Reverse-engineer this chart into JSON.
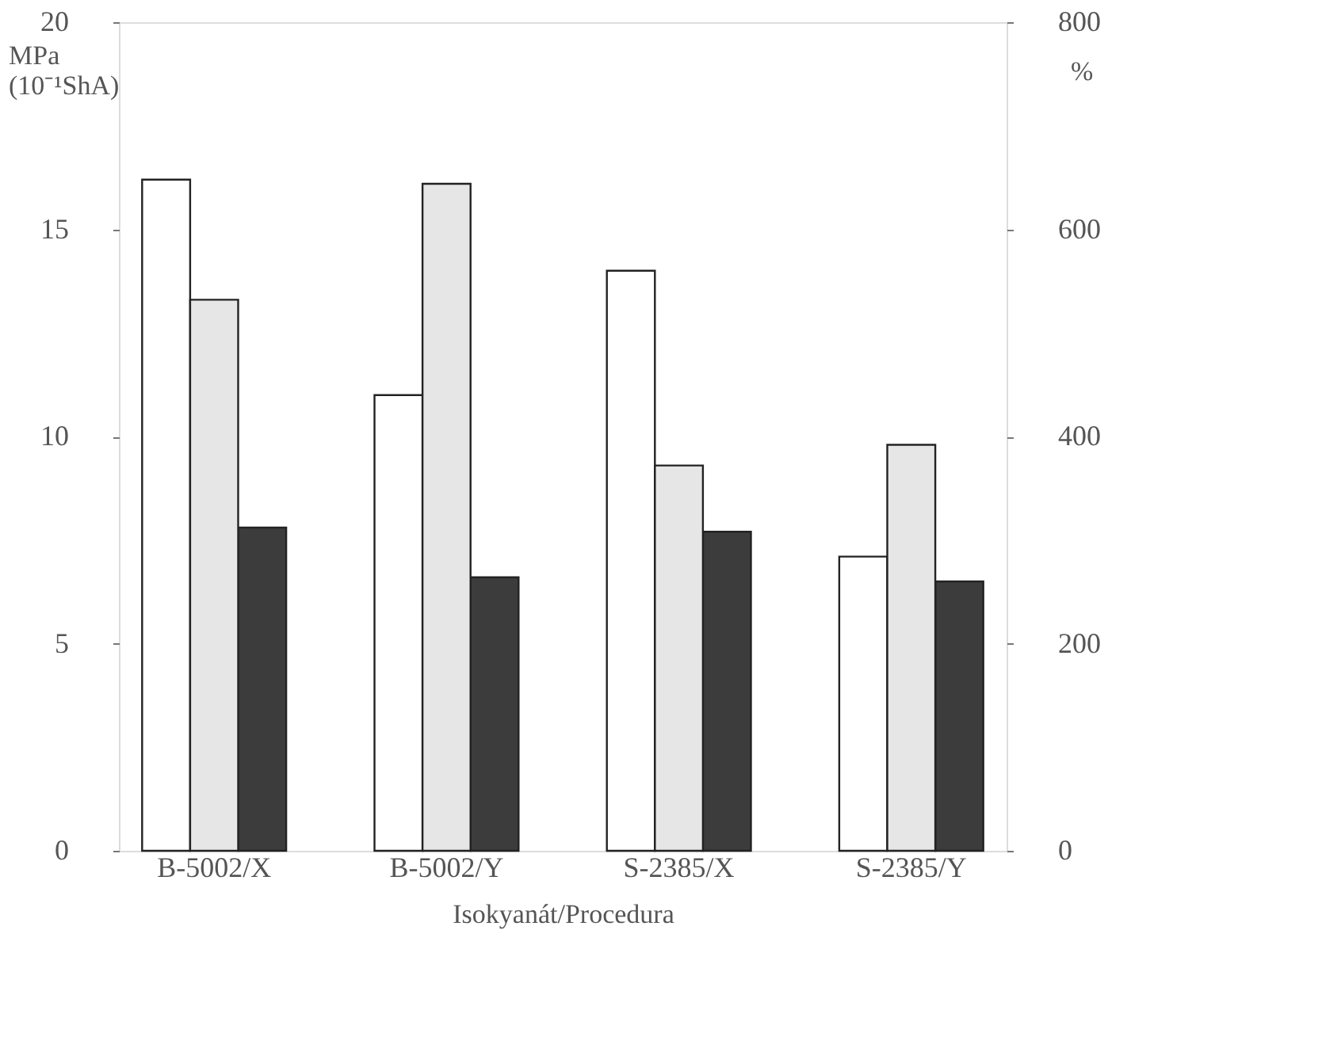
{
  "chart_data": {
    "type": "bar",
    "xlabel": "Isokyanát/Procedura",
    "ylabel": "MPa\n(10⁻¹ShA)",
    "y2label": "%",
    "categories": [
      "B-5002/X",
      "B-5002/Y",
      "S-2385/X",
      "S-2385/Y"
    ],
    "series": [
      {
        "color": "#ffffff",
        "values": [
          16.2,
          11.0,
          14.0,
          7.1
        ]
      },
      {
        "color": "#e6e6e6",
        "axis": "y2",
        "values": [
          532,
          644,
          372,
          392
        ]
      },
      {
        "color": "#3c3c3c",
        "values": [
          7.8,
          6.6,
          7.7,
          6.5
        ]
      }
    ],
    "ylim": [
      0,
      20
    ],
    "yticks": [
      0,
      5,
      10,
      15,
      20
    ],
    "y2lim": [
      0,
      800
    ],
    "y2ticks": [
      0,
      200,
      400,
      600,
      800
    ],
    "grid": false
  }
}
